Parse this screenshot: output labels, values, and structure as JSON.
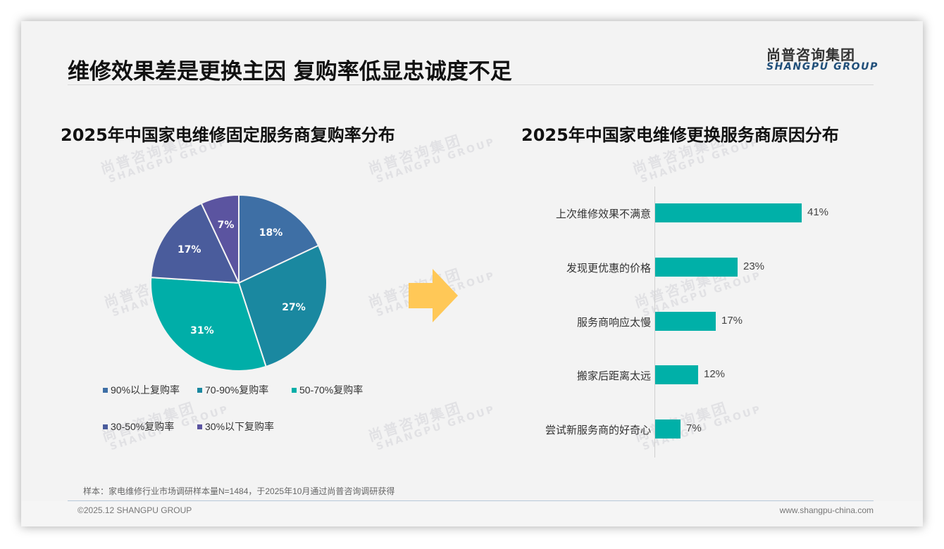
{
  "header": {
    "title": "维修效果差是更换主因 复购率低显忠诚度不足",
    "logo_cn": "尚普咨询集团",
    "logo_en": "SHANGPU GROUP"
  },
  "watermark": {
    "cn": "尚普咨询集团",
    "en": "SHANGPU GROUP"
  },
  "left_chart": {
    "title": "2025年中国家电维修固定服务商复购率分布",
    "slices": [
      {
        "label": "90%以上复购率",
        "value": 18,
        "text": "18%",
        "color": "#3e6fa5"
      },
      {
        "label": "70-90%复购率",
        "value": 27,
        "text": "27%",
        "color": "#1a88a0"
      },
      {
        "label": "50-70%复购率",
        "value": 31,
        "text": "31%",
        "color": "#00aea8"
      },
      {
        "label": "30-50%复购率",
        "value": 17,
        "text": "17%",
        "color": "#4a5c9c"
      },
      {
        "label": "30%以下复购率",
        "value": 7,
        "text": "7%",
        "color": "#5b54a0"
      }
    ]
  },
  "right_chart": {
    "title": "2025年中国家电维修更换服务商原因分布",
    "bars": [
      {
        "label": "上次维修效果不满意",
        "value": 41,
        "text": "41%"
      },
      {
        "label": "发现更优惠的价格",
        "value": 23,
        "text": "23%"
      },
      {
        "label": "服务商响应太慢",
        "value": 17,
        "text": "17%"
      },
      {
        "label": "搬家后距离太远",
        "value": 12,
        "text": "12%"
      },
      {
        "label": "尝试新服务商的好奇心",
        "value": 7,
        "text": "7%"
      }
    ],
    "bar_color": "#00b0a8"
  },
  "arrow_color": "#ffc857",
  "footer": {
    "sample_note": "样本：家电维修行业市场调研样本量N=1484，于2025年10月通过尚普咨询调研获得",
    "copyright": "©2025.12 SHANGPU GROUP",
    "website": "www.shangpu-china.com"
  },
  "chart_data": [
    {
      "type": "pie",
      "title": "2025年中国家电维修固定服务商复购率分布",
      "categories": [
        "90%以上复购率",
        "70-90%复购率",
        "50-70%复购率",
        "30-50%复购率",
        "30%以下复购率"
      ],
      "values": [
        18,
        27,
        31,
        17,
        7
      ],
      "unit": "%",
      "legend_position": "bottom"
    },
    {
      "type": "bar",
      "orientation": "horizontal",
      "title": "2025年中国家电维修更换服务商原因分布",
      "categories": [
        "上次维修效果不满意",
        "发现更优惠的价格",
        "服务商响应太慢",
        "搬家后距离太远",
        "尝试新服务商的好奇心"
      ],
      "values": [
        41,
        23,
        17,
        12,
        7
      ],
      "unit": "%",
      "xlabel": "",
      "ylabel": "",
      "grid": false
    }
  ]
}
